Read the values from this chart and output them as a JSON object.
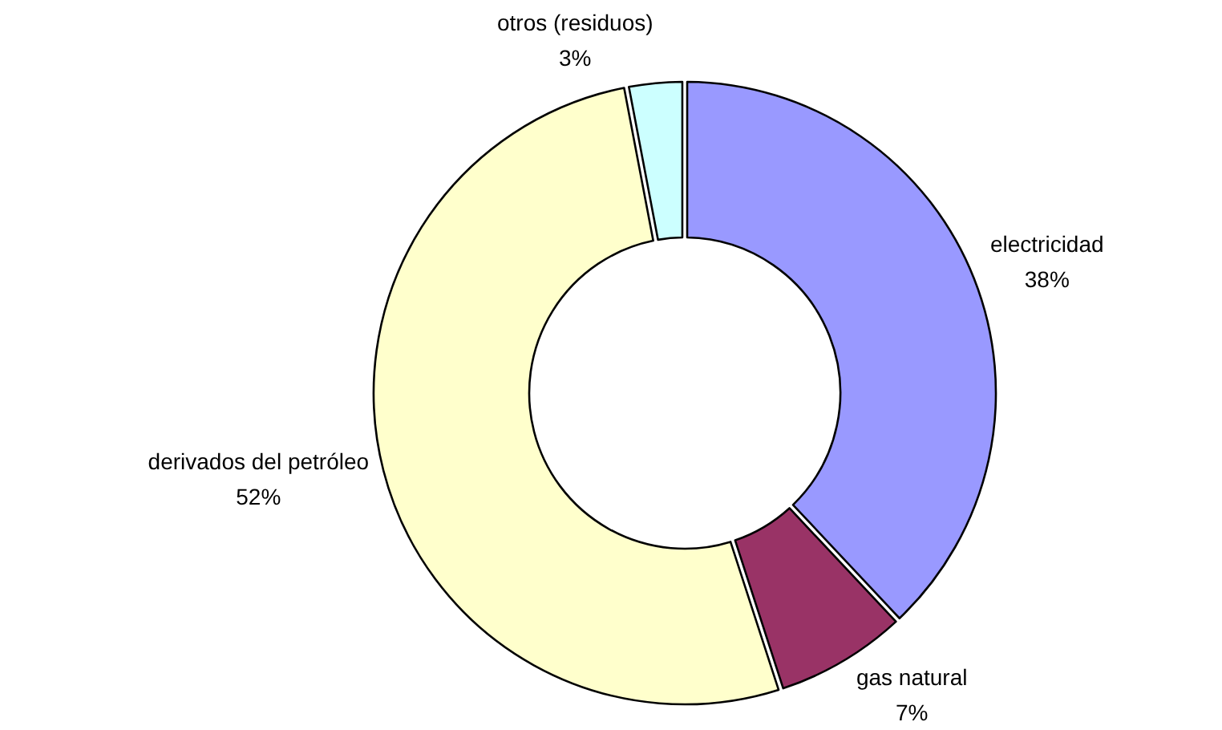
{
  "chart_data": {
    "type": "donut",
    "categories": [
      "electricidad",
      "gas natural",
      "derivados del petróleo",
      "otros (residuos)"
    ],
    "values": [
      38,
      7,
      52,
      3
    ],
    "value_labels": [
      "38%",
      "7%",
      "52%",
      "3%"
    ],
    "colors": [
      "#9999ff",
      "#993366",
      "#ffffcc",
      "#ccffff"
    ]
  }
}
